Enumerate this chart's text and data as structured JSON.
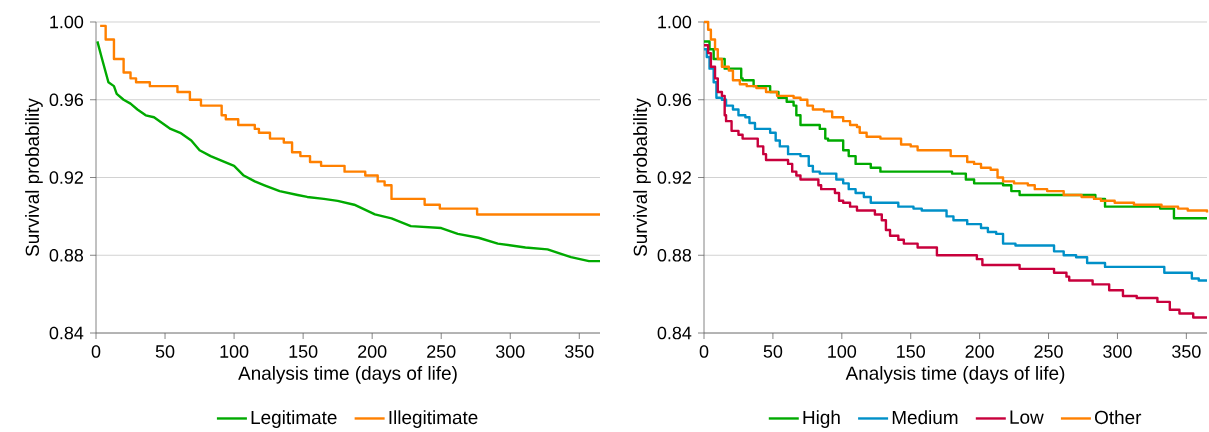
{
  "chart_data": [
    {
      "type": "step",
      "xlabel": "Analysis time (days of life)",
      "ylabel": "Survival probability",
      "xlim": [
        0,
        365
      ],
      "ylim": [
        0.84,
        1.0
      ],
      "xticks": [
        0,
        50,
        100,
        150,
        200,
        250,
        300,
        350
      ],
      "yticks": [
        0.84,
        0.88,
        0.92,
        0.96,
        {
          "value": 1.0,
          "label": "1.00"
        }
      ],
      "grid": "y",
      "legend": "bottom",
      "series": [
        {
          "name": "Legitimate",
          "color": "#00aa00",
          "type": "line",
          "x": [
            1,
            4,
            9,
            13,
            15,
            20,
            25,
            30,
            36,
            42,
            54,
            61,
            69,
            75,
            83,
            93,
            100,
            107,
            115,
            122,
            133,
            146,
            153,
            165,
            175,
            187,
            202,
            214,
            228,
            250,
            262,
            277,
            291,
            311,
            327,
            344,
            357,
            365
          ],
          "values": [
            0.99,
            0.982,
            0.969,
            0.967,
            0.963,
            0.96,
            0.958,
            0.955,
            0.952,
            0.951,
            0.945,
            0.943,
            0.939,
            0.934,
            0.931,
            0.928,
            0.926,
            0.921,
            0.918,
            0.916,
            0.913,
            0.911,
            0.91,
            0.909,
            0.908,
            0.906,
            0.901,
            0.899,
            0.895,
            0.894,
            0.891,
            0.889,
            0.886,
            0.884,
            0.883,
            0.879,
            0.877,
            0.877
          ]
        },
        {
          "name": "Illegitimate",
          "color": "#ff8000",
          "x": [
            3,
            7,
            13,
            20,
            25,
            29,
            39,
            59,
            68,
            76,
            91,
            94,
            103,
            115,
            118,
            126,
            136,
            142,
            148,
            155,
            163,
            180,
            195,
            204,
            209,
            214,
            238,
            249,
            276,
            365
          ],
          "values": [
            0.998,
            0.991,
            0.981,
            0.974,
            0.971,
            0.969,
            0.967,
            0.964,
            0.96,
            0.957,
            0.952,
            0.95,
            0.947,
            0.945,
            0.943,
            0.94,
            0.938,
            0.933,
            0.931,
            0.928,
            0.926,
            0.923,
            0.921,
            0.918,
            0.916,
            0.909,
            0.906,
            0.904,
            0.901,
            0.901
          ]
        }
      ]
    },
    {
      "type": "step",
      "xlabel": "Analysis time (days of life)",
      "ylabel": "Survival probability",
      "xlim": [
        0,
        365
      ],
      "ylim": [
        0.84,
        1.0
      ],
      "xticks": [
        0,
        50,
        100,
        150,
        200,
        250,
        300,
        350
      ],
      "yticks": [
        0.84,
        0.88,
        0.92,
        0.96,
        {
          "value": 1.0,
          "label": "1.00"
        }
      ],
      "grid": "y",
      "legend": "bottom",
      "series": [
        {
          "name": "High",
          "color": "#00aa00",
          "x": [
            0,
            4,
            7,
            15,
            27,
            28,
            36,
            48,
            54,
            60,
            65,
            67,
            70,
            84,
            88,
            90,
            101,
            105,
            110,
            121,
            128,
            180,
            190,
            196,
            217,
            223,
            229,
            284,
            291,
            331,
            341,
            365
          ],
          "values": [
            0.99,
            0.986,
            0.981,
            0.976,
            0.971,
            0.97,
            0.967,
            0.964,
            0.961,
            0.959,
            0.957,
            0.952,
            0.947,
            0.945,
            0.94,
            0.939,
            0.934,
            0.931,
            0.927,
            0.925,
            0.923,
            0.922,
            0.919,
            0.917,
            0.916,
            0.913,
            0.911,
            0.909,
            0.905,
            0.904,
            0.899,
            0.899
          ]
        },
        {
          "name": "Medium",
          "color": "#0090c8",
          "x": [
            0,
            2,
            4,
            7,
            9,
            13,
            16,
            21,
            25,
            30,
            33,
            37,
            48,
            52,
            55,
            61,
            70,
            76,
            79,
            84,
            96,
            101,
            105,
            110,
            116,
            121,
            141,
            152,
            158,
            176,
            181,
            191,
            201,
            206,
            212,
            217,
            226,
            254,
            261,
            270,
            278,
            291,
            334,
            354,
            359,
            365
          ],
          "values": [
            0.986,
            0.982,
            0.976,
            0.969,
            0.961,
            0.96,
            0.957,
            0.955,
            0.952,
            0.951,
            0.948,
            0.945,
            0.943,
            0.939,
            0.936,
            0.932,
            0.931,
            0.926,
            0.923,
            0.922,
            0.919,
            0.917,
            0.914,
            0.912,
            0.91,
            0.907,
            0.905,
            0.904,
            0.903,
            0.9,
            0.898,
            0.896,
            0.894,
            0.892,
            0.891,
            0.886,
            0.885,
            0.882,
            0.88,
            0.879,
            0.876,
            0.874,
            0.871,
            0.868,
            0.867,
            0.867
          ]
        },
        {
          "name": "Low",
          "color": "#c8003c",
          "x": [
            0,
            3,
            5,
            8,
            10,
            13,
            15,
            16,
            20,
            25,
            28,
            39,
            43,
            45,
            61,
            64,
            67,
            70,
            83,
            85,
            95,
            98,
            101,
            106,
            111,
            124,
            129,
            132,
            135,
            141,
            145,
            155,
            169,
            198,
            202,
            229,
            254,
            263,
            265,
            282,
            294,
            304,
            314,
            329,
            338,
            345,
            355,
            365
          ],
          "values": [
            0.988,
            0.984,
            0.977,
            0.971,
            0.964,
            0.962,
            0.952,
            0.949,
            0.944,
            0.942,
            0.94,
            0.936,
            0.932,
            0.929,
            0.927,
            0.923,
            0.921,
            0.919,
            0.916,
            0.914,
            0.912,
            0.908,
            0.907,
            0.905,
            0.903,
            0.901,
            0.898,
            0.893,
            0.89,
            0.888,
            0.886,
            0.884,
            0.88,
            0.878,
            0.875,
            0.873,
            0.871,
            0.869,
            0.867,
            0.865,
            0.862,
            0.859,
            0.858,
            0.856,
            0.852,
            0.85,
            0.848,
            0.848
          ]
        },
        {
          "name": "Other",
          "color": "#ff8000",
          "x": [
            0,
            3,
            5,
            8,
            10,
            13,
            18,
            21,
            26,
            31,
            38,
            45,
            53,
            65,
            70,
            75,
            79,
            87,
            93,
            101,
            106,
            111,
            113,
            118,
            128,
            136,
            143,
            150,
            155,
            162,
            179,
            189,
            191,
            196,
            201,
            208,
            213,
            217,
            225,
            235,
            240,
            249,
            261,
            274,
            283,
            288,
            298,
            312,
            332,
            344,
            351,
            365
          ],
          "values": [
            1.0,
            0.996,
            0.991,
            0.986,
            0.981,
            0.977,
            0.975,
            0.97,
            0.968,
            0.967,
            0.966,
            0.964,
            0.962,
            0.961,
            0.96,
            0.957,
            0.955,
            0.954,
            0.951,
            0.949,
            0.947,
            0.946,
            0.943,
            0.941,
            0.94,
            0.94,
            0.937,
            0.936,
            0.934,
            0.934,
            0.931,
            0.931,
            0.928,
            0.927,
            0.925,
            0.924,
            0.92,
            0.918,
            0.917,
            0.916,
            0.914,
            0.913,
            0.911,
            0.91,
            0.909,
            0.908,
            0.907,
            0.906,
            0.905,
            0.904,
            0.903,
            0.902
          ]
        }
      ]
    }
  ]
}
